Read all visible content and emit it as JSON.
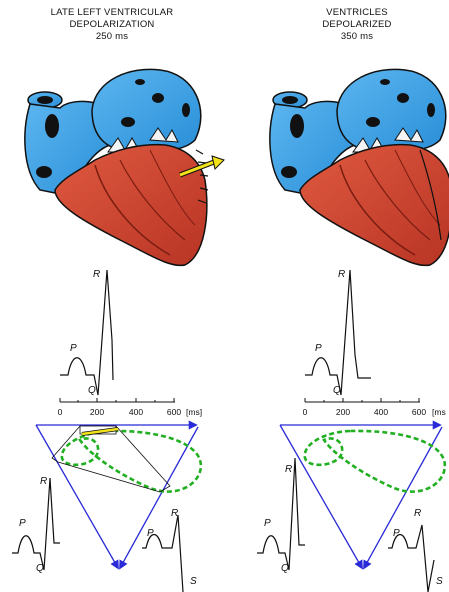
{
  "left_panel": {
    "title_line1": "LATE LEFT VENTRICULAR",
    "title_line2": "DEPOLARIZATION",
    "title_line3": "250 ms"
  },
  "right_panel": {
    "title_line1": "VENTRICLES",
    "title_line2": "DEPOLARIZED",
    "title_line3": "350 ms"
  },
  "wave_labels": {
    "P": "P",
    "Q": "Q",
    "R": "R",
    "S": "S"
  },
  "time_axis": {
    "ticks": [
      "0",
      "200",
      "400",
      "600"
    ],
    "unit_left": "[ms]",
    "unit_right": "[ms"
  },
  "colors": {
    "atria_blue": "#2f9be3",
    "ventricle_red": "#c8402c",
    "triangle_blue": "#2a2ad8",
    "loop_green": "#22b022",
    "arrow_yellow": "#f2e21a"
  }
}
